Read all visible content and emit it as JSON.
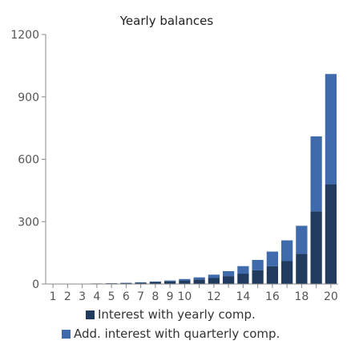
{
  "chart_data": {
    "type": "bar",
    "stacked": true,
    "title": "Yearly balances",
    "xlabel": "",
    "ylabel": "",
    "ylim": [
      0,
      1200
    ],
    "yticks": [
      0,
      300,
      600,
      900,
      1200
    ],
    "categories": [
      "1",
      "2",
      "3",
      "4",
      "5",
      "6",
      "7",
      "8",
      "9",
      "10",
      "11",
      "12",
      "13",
      "14",
      "15",
      "16",
      "17",
      "18",
      "19",
      "20"
    ],
    "x_tick_labels": [
      "1",
      "2",
      "3",
      "4",
      "5",
      "6",
      "7",
      "8",
      "9",
      "10",
      "",
      "12",
      "",
      "14",
      "",
      "16",
      "",
      "18",
      "",
      "20"
    ],
    "series": [
      {
        "name": "Interest with yearly comp.",
        "color": "#213b5e",
        "values": [
          0.5,
          1,
          1.5,
          2.5,
          3.5,
          5,
          7,
          9.5,
          12.5,
          17,
          22,
          29,
          38,
          50,
          66,
          86,
          110,
          145,
          350,
          480
        ]
      },
      {
        "name": "Add. interest with quarterly comp.",
        "color": "#3f6aab",
        "values": [
          0,
          0,
          0,
          0,
          0.5,
          1,
          1.5,
          2.5,
          4.5,
          7,
          10,
          16,
          24,
          36,
          50,
          70,
          100,
          135,
          360,
          530
        ]
      }
    ],
    "grid": false,
    "legend_position": "bottom"
  }
}
